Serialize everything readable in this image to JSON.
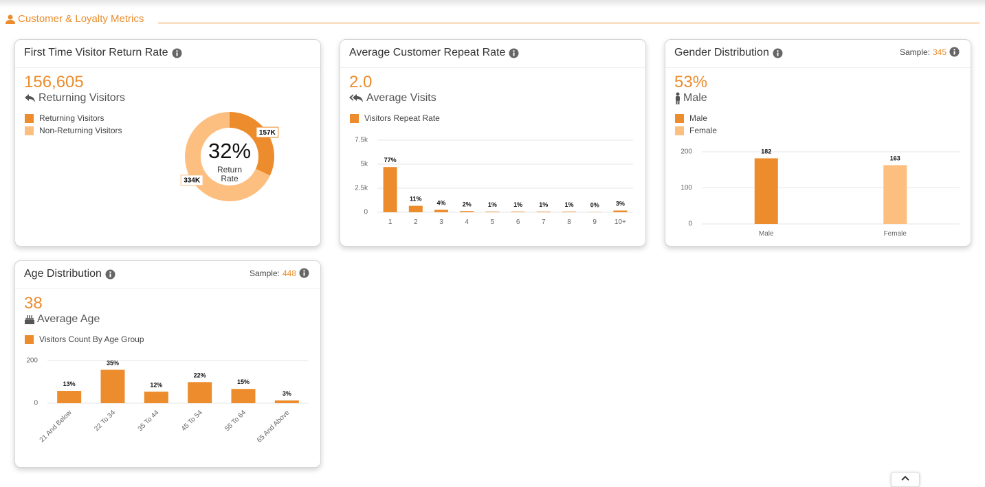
{
  "header": {
    "title": "Customer & Loyalty Metrics"
  },
  "cards": [
    {
      "title": "First Time Visitor Return Rate",
      "metric": "156,605",
      "metric_label": "Returning Visitors",
      "chart": {
        "type": "donut",
        "categories": [
          "Returning Visitors",
          "Non-Returning Visitors"
        ],
        "values": [
          157000,
          334000
        ],
        "value_labels": [
          "157K",
          "334K"
        ],
        "colors": [
          "#ec8c2d",
          "#fdbf80"
        ],
        "center_value": "32%",
        "center_label": [
          "Return",
          "Rate"
        ]
      }
    },
    {
      "title": "Average Customer Repeat Rate",
      "metric": "2.0",
      "metric_label": "Average Visits",
      "chart": {
        "type": "bar",
        "categories": [
          "1",
          "2",
          "3",
          "4",
          "5",
          "6",
          "7",
          "8",
          "9",
          "10+"
        ],
        "series": [
          {
            "name": "Visitors Repeat Rate",
            "color": "#ec8c2d",
            "values": [
              4700,
              670,
              250,
              120,
              60,
              60,
              60,
              60,
              20,
              180
            ],
            "percent_labels": [
              "77%",
              "11%",
              "4%",
              "2%",
              "1%",
              "1%",
              "1%",
              "1%",
              "0%",
              "3%"
            ]
          }
        ],
        "ylim": [
          0,
          7500
        ],
        "yticks": [
          0,
          {
            "value": 2500,
            "label": "2.5k"
          },
          {
            "value": 5000,
            "label": "5k"
          },
          {
            "value": 7500,
            "label": "7.5k"
          }
        ],
        "grid": true
      }
    },
    {
      "title": "Gender Distribution",
      "sample_label": "Sample:",
      "sample": 345,
      "metric": "53%",
      "metric_label": "Male",
      "chart": {
        "type": "bar",
        "categories": [
          "Male",
          "Female"
        ],
        "values": [
          182,
          163
        ],
        "colors": [
          "#ec8c2d",
          "#fdbf80"
        ],
        "ylim": [
          0,
          200
        ],
        "yticks": [
          0,
          100,
          200
        ],
        "grid": true
      }
    },
    {
      "title": "Age Distribution",
      "sample_label": "Sample:",
      "sample": 448,
      "metric": "38",
      "metric_label": "Average Age",
      "chart": {
        "type": "bar",
        "categories": [
          "21 And Below",
          "22 To 34",
          "35 To 44",
          "45 To 54",
          "55 To 64",
          "65 And Above"
        ],
        "series": [
          {
            "name": "Visitors Count By Age Group",
            "color": "#ec8c2d",
            "values": [
              58,
              157,
              54,
              99,
              67,
              13
            ],
            "percent_labels": [
              "13%",
              "35%",
              "12%",
              "22%",
              "15%",
              "3%"
            ]
          }
        ],
        "ylim": [
          0,
          200
        ],
        "yticks": [
          0,
          200
        ],
        "grid": true,
        "rotate_labels": true
      }
    }
  ]
}
